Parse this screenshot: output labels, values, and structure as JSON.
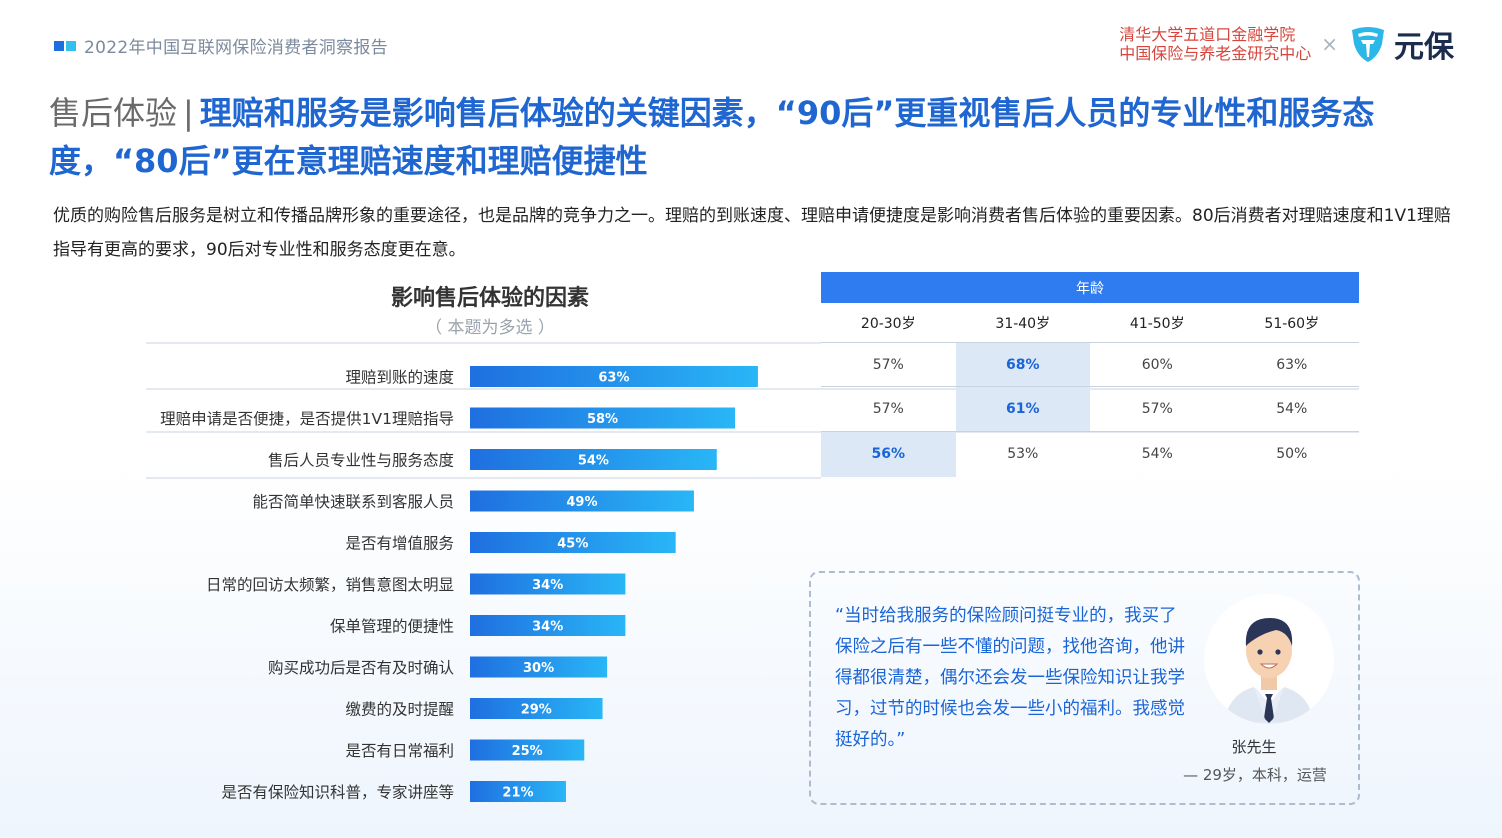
{
  "header": {
    "report_title": "2022年中国互联网保险消费者洞察报告",
    "institution_line1": "清华大学五道口金融学院",
    "institution_line2": "中国保险与养老金研究中心",
    "times_symbol": "×",
    "brand_name": "元保"
  },
  "headline": {
    "section": "售后体验",
    "separator": "|",
    "text": "理赔和服务是影响售后体验的关键因素，“90后”更重视售后人员的专业性和服务态度，“80后”更在意理赔速度和理赔便捷性"
  },
  "description": "优质的购险售后服务是树立和传播品牌形象的重要途径，也是品牌的竞争力之一。理赔的到账速度、理赔申请便捷度是影响消费者售后体验的重要因素。80后消费者对理赔速度和1V1理赔指导有更高的要求，90后对专业性和服务态度更在意。",
  "colors": {
    "accent": "#1f66d1",
    "bar_start": "#1f6fe0",
    "bar_end": "#29b6f6",
    "highlight_bg": "#dce8f6",
    "header_blue": "#2f7cf0",
    "brand_red": "#d6463c"
  },
  "chart_data": {
    "type": "bar",
    "orientation": "horizontal",
    "title": "影响售后体验的因素",
    "subtitle": "（ 本题为多选 ）",
    "categories": [
      "理赔到账的速度",
      "理赔申请是否便捷，是否提供1V1理赔指导",
      "售后人员专业性与服务态度",
      "能否简单快速联系到客服人员",
      "是否有增值服务",
      "日常的回访太频繁，销售意图太明显",
      "保单管理的便捷性",
      "购买成功后是否有及时确认",
      "缴费的及时提醒",
      "是否有日常福利",
      "是否有保险知识科普，专家讲座等"
    ],
    "values": [
      63,
      58,
      54,
      49,
      45,
      34,
      34,
      30,
      29,
      25,
      21
    ],
    "value_labels": [
      "63%",
      "58%",
      "54%",
      "49%",
      "45%",
      "34%",
      "34%",
      "30%",
      "29%",
      "25%",
      "21%"
    ],
    "unit": "%"
  },
  "age_table": {
    "header": "年龄",
    "columns": [
      "20-30岁",
      "31-40岁",
      "41-50岁",
      "51-60岁"
    ],
    "rows": [
      {
        "cells": [
          "57%",
          "68%",
          "60%",
          "63%"
        ],
        "highlight": [
          false,
          true,
          false,
          false
        ]
      },
      {
        "cells": [
          "57%",
          "61%",
          "57%",
          "54%"
        ],
        "highlight": [
          false,
          true,
          false,
          false
        ]
      },
      {
        "cells": [
          "56%",
          "53%",
          "54%",
          "50%"
        ],
        "highlight": [
          true,
          false,
          false,
          false
        ]
      }
    ]
  },
  "quote": {
    "text": "“当时给我服务的保险顾问挺专业的，我买了保险之后有一些不懂的问题，找他咨询，他讲得都很清楚，偶尔还会发一些保险知识让我学习，过节的时候也会发一些小的福利。我感觉挺好的。”",
    "person_name": "张先生",
    "person_info": "— 29岁，本科，运营",
    "avatar_icon": "man-avatar-icon"
  }
}
